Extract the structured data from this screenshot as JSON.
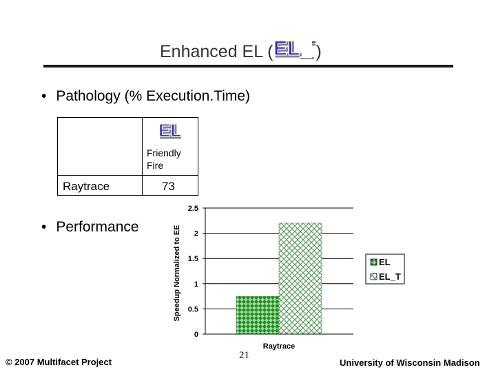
{
  "slide": {
    "title": "Enhanced EL (",
    "title_close": ")",
    "title_logo_text": "EL_T",
    "bullets": [
      {
        "bullet": "•",
        "text": "Pathology (% Execution.Time)"
      },
      {
        "bullet": "•",
        "text": "Performance"
      }
    ],
    "footer_left": "© 2007 Multifacet Project",
    "page_number": "21",
    "footer_right": "University of Wisconsin Madison"
  },
  "pathology_table": {
    "header_logo_text": "EL",
    "header_label": "Friendly Fire",
    "rows": [
      {
        "label": "Raytrace",
        "value": "73"
      }
    ]
  },
  "colors": {
    "title": "#333333",
    "el_series": "#1f8a1f",
    "el_t_series": "#7fbf7f",
    "logo_fill": "#2b2bb0"
  },
  "chart_data": {
    "type": "bar",
    "categories": [
      "Raytrace"
    ],
    "series": [
      {
        "name": "EL",
        "values": [
          0.75
        ]
      },
      {
        "name": "EL_T",
        "values": [
          2.2
        ]
      }
    ],
    "ylabel": "Speedup Normalized to EE",
    "ylim": [
      0,
      2.5
    ],
    "yticks": [
      "0",
      "0.5",
      "1",
      "1.5",
      "2",
      "2.5"
    ],
    "grid": true,
    "legend": "right"
  }
}
